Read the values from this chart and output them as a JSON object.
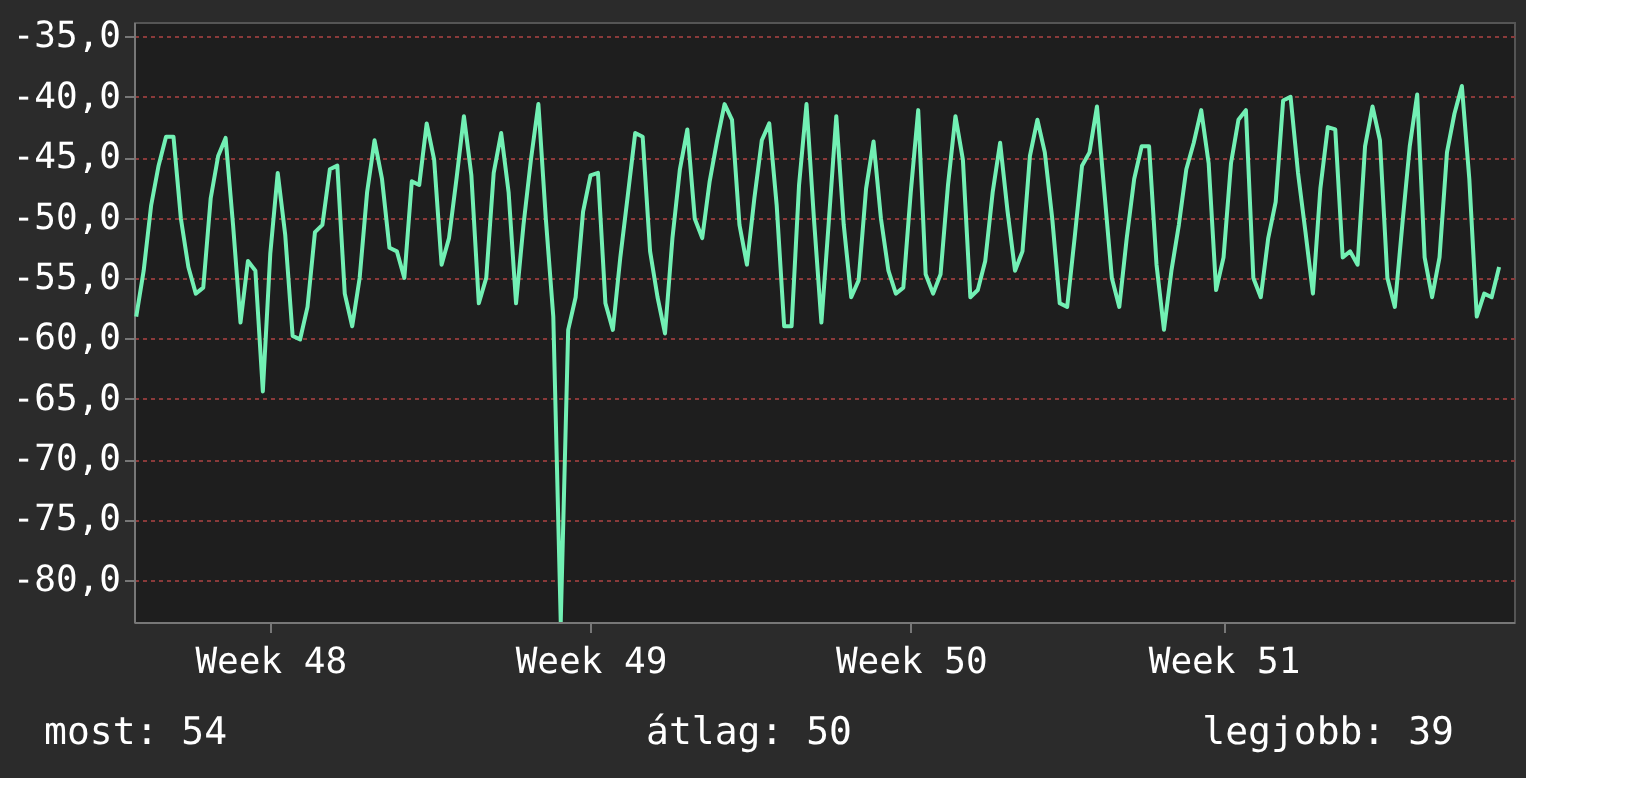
{
  "chart_data": {
    "type": "line",
    "categories": [
      null,
      null,
      null,
      null,
      null,
      null,
      null,
      null,
      null,
      null,
      null,
      null,
      null,
      null,
      null,
      null,
      null,
      null,
      "Week 48",
      null,
      null,
      null,
      null,
      null,
      null,
      null,
      null,
      null,
      null,
      null,
      null,
      null,
      null,
      null,
      null,
      null,
      null,
      null,
      null,
      null,
      null,
      null,
      null,
      null,
      null,
      null,
      null,
      null,
      null,
      null,
      null,
      null,
      null,
      null,
      null,
      null,
      null,
      null,
      null,
      null,
      null,
      "Week 49",
      null,
      null,
      null,
      null,
      null,
      null,
      null,
      null,
      null,
      null,
      null,
      null,
      null,
      null,
      null,
      null,
      null,
      null,
      null,
      null,
      null,
      null,
      null,
      null,
      null,
      null,
      null,
      null,
      null,
      null,
      null,
      null,
      null,
      null,
      null,
      null,
      null,
      null,
      null,
      null,
      null,
      null,
      "Week 50",
      null,
      null,
      null,
      null,
      null,
      null,
      null,
      null,
      null,
      null,
      null,
      null,
      null,
      null,
      null,
      null,
      null,
      null,
      null,
      null,
      null,
      null,
      null,
      null,
      null,
      null,
      null,
      null,
      null,
      null,
      null,
      null,
      null,
      null,
      null,
      null,
      null,
      null,
      null,
      null,
      null,
      "Week 51",
      null,
      null,
      null,
      null,
      null,
      null,
      null,
      null,
      null,
      null,
      null,
      null,
      null,
      null,
      null,
      null,
      null,
      null,
      null,
      null,
      null,
      null,
      null,
      null,
      null,
      null,
      null,
      null,
      null,
      null,
      null,
      null,
      null,
      null,
      null,
      null,
      null
    ],
    "series": [
      {
        "color": "#72f0b4",
        "values": [
          -58.2,
          -54.4,
          -49.0,
          -45.7,
          -43.3,
          -43.3,
          -50.1,
          -54.1,
          -56.3,
          -55.8,
          -48.4,
          -44.9,
          -43.4,
          -50.6,
          -58.7,
          -53.6,
          -54.4,
          -64.4,
          -53.0,
          -46.3,
          -51.4,
          -59.8,
          -60.1,
          -57.4,
          -51.2,
          -50.6,
          -46.0,
          -45.7,
          -56.3,
          -59.0,
          -55.0,
          -47.9,
          -43.6,
          -46.8,
          -52.5,
          -52.8,
          -55.0,
          -47.0,
          -47.3,
          -42.2,
          -45.2,
          -53.9,
          -51.7,
          -46.8,
          -41.6,
          -46.5,
          -57.1,
          -55.0,
          -46.3,
          -43.0,
          -47.9,
          -57.1,
          -50.6,
          -45.2,
          -40.6,
          -50.1,
          -58.2,
          -83.5,
          -59.3,
          -56.6,
          -49.5,
          -46.5,
          -46.3,
          -57.1,
          -59.3,
          -53.3,
          -48.2,
          -43.0,
          -43.3,
          -52.8,
          -56.6,
          -59.6,
          -51.7,
          -46.0,
          -42.7,
          -50.1,
          -51.7,
          -47.0,
          -43.6,
          -40.6,
          -41.9,
          -50.6,
          -53.9,
          -48.4,
          -43.6,
          -42.2,
          -49.0,
          -59.0,
          -59.0,
          -47.3,
          -40.6,
          -50.1,
          -58.7,
          -50.3,
          -41.6,
          -50.6,
          -56.6,
          -55.2,
          -47.6,
          -43.7,
          -50.1,
          -54.4,
          -56.3,
          -55.8,
          -47.9,
          -41.1,
          -54.7,
          -56.3,
          -54.7,
          -47.3,
          -41.6,
          -45.2,
          -56.6,
          -56.0,
          -53.6,
          -47.9,
          -43.8,
          -49.5,
          -54.4,
          -52.8,
          -44.9,
          -41.9,
          -44.6,
          -50.1,
          -57.1,
          -57.4,
          -51.7,
          -45.7,
          -44.6,
          -40.8,
          -47.9,
          -55.0,
          -57.4,
          -51.7,
          -46.8,
          -44.1,
          -44.1,
          -53.9,
          -59.3,
          -54.4,
          -50.6,
          -46.0,
          -43.8,
          -41.1,
          -45.5,
          -56.0,
          -53.3,
          -45.5,
          -41.9,
          -41.1,
          -55.0,
          -56.6,
          -51.7,
          -48.7,
          -40.3,
          -40.0,
          -46.3,
          -51.2,
          -56.3,
          -47.6,
          -42.5,
          -42.7,
          -53.3,
          -52.8,
          -53.9,
          -44.1,
          -40.8,
          -43.6,
          -55.0,
          -57.4,
          -50.6,
          -44.1,
          -39.8,
          -53.3,
          -56.6,
          -53.3,
          -44.6,
          -41.4,
          -39.1,
          -46.8,
          -58.2,
          -56.3,
          -56.6,
          -54.1
        ]
      }
    ],
    "ylim": [
      -83.5,
      -33.8
    ],
    "yticks": [
      {
        "value": -35,
        "label": "-35,0"
      },
      {
        "value": -40,
        "label": "-40,0"
      },
      {
        "value": -45,
        "label": "-45,0"
      },
      {
        "value": -50,
        "label": "-50,0"
      },
      {
        "value": -55,
        "label": "-55,0"
      },
      {
        "value": -60,
        "label": "-60,0"
      },
      {
        "value": -65,
        "label": "-65,0"
      },
      {
        "value": -70,
        "label": "-70,0"
      },
      {
        "value": -75,
        "label": "-75,0"
      },
      {
        "value": -80,
        "label": "-80,0"
      }
    ],
    "grid": "y",
    "line_style": "solid",
    "annotations": [
      "most: 54",
      "átlag: 50",
      "legjobb: 39"
    ]
  }
}
